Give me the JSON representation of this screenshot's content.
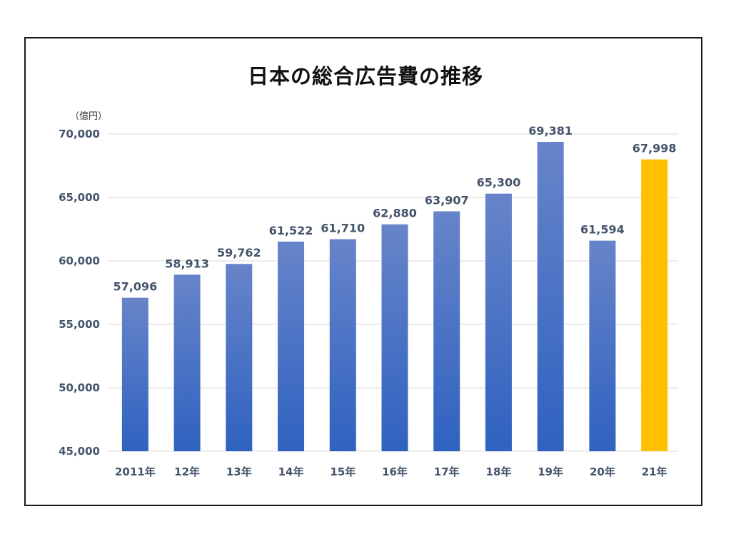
{
  "chart_data": {
    "type": "bar",
    "title": "日本の総合広告費の推移",
    "unit_label": "（億円）",
    "categories": [
      "2011年",
      "12年",
      "13年",
      "14年",
      "15年",
      "16年",
      "17年",
      "18年",
      "19年",
      "20年",
      "21年"
    ],
    "values": [
      57096,
      58913,
      59762,
      61522,
      61710,
      62880,
      63907,
      65300,
      69381,
      61594,
      67998
    ],
    "data_labels": [
      "57,096",
      "58,913",
      "59,762",
      "61,522",
      "61,710",
      "62,880",
      "63,907",
      "65,300",
      "69,381",
      "61,594",
      "67,998"
    ],
    "ylim": [
      45000,
      70000
    ],
    "yticks": [
      45000,
      50000,
      55000,
      60000,
      65000,
      70000
    ],
    "ytick_labels": [
      "45,000",
      "50,000",
      "55,000",
      "60,000",
      "65,000",
      "70,000"
    ],
    "highlight_index": 10,
    "grid": true,
    "xlabel": "",
    "ylabel": ""
  },
  "colors": {
    "bar_top": "#6784c9",
    "bar_bottom": "#2f62c0",
    "highlight": "#ffc000",
    "grid": "#d9d9d9",
    "text": "#44546a"
  }
}
